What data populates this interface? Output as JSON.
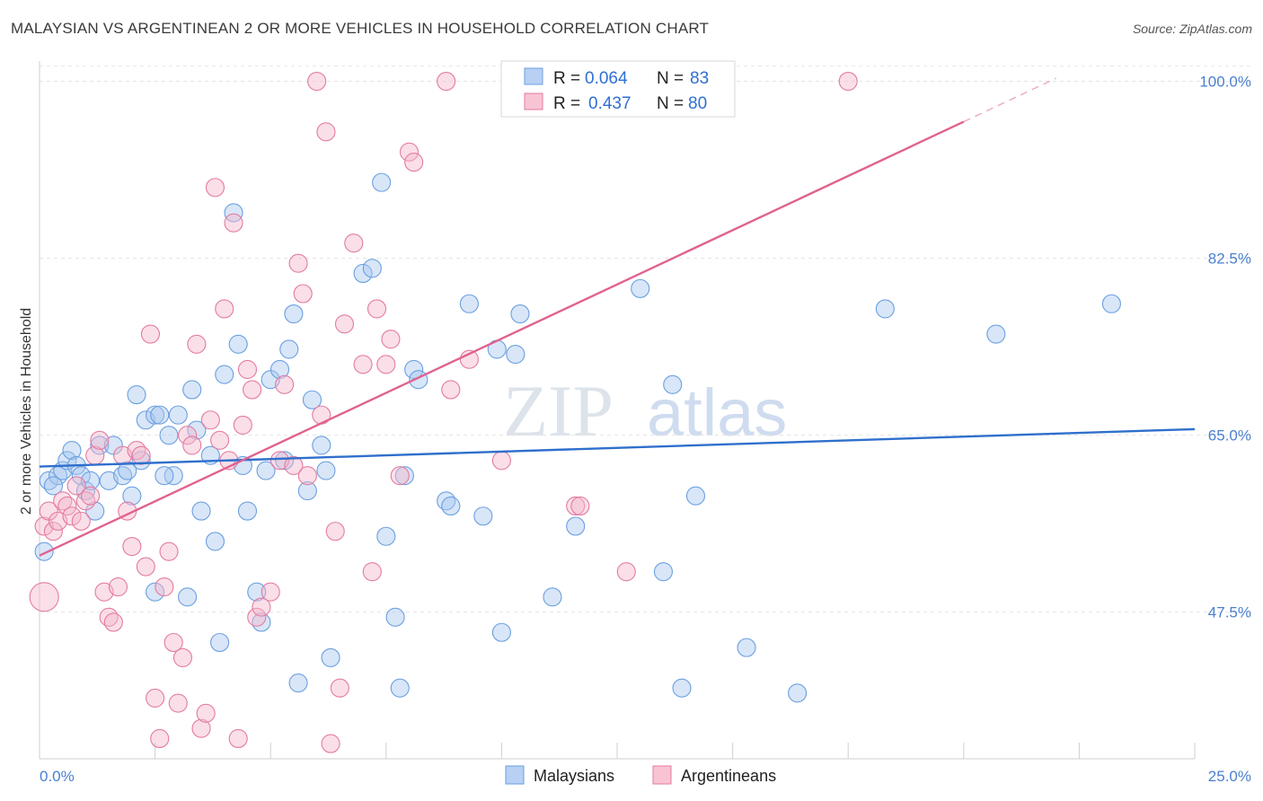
{
  "title": "MALAYSIAN VS ARGENTINEAN 2 OR MORE VEHICLES IN HOUSEHOLD CORRELATION CHART",
  "source": "Source: ZipAtlas.com",
  "watermark": {
    "zip": "ZIP",
    "atlas": "atlas"
  },
  "colors": {
    "blue": "#6a9fe0",
    "blue_fill": "#a9c8f0",
    "pink": "#e37aa0",
    "pink_fill": "#f5b8cb",
    "blue_line": "#2f6fcc",
    "pink_line": "#e0628f"
  },
  "legend": {
    "r_label": "R =",
    "n_label": "N =",
    "items": [
      {
        "r": "0.064",
        "n": "83"
      },
      {
        "r": "0.437",
        "n": "80"
      }
    ]
  },
  "chart_data": {
    "type": "scatter",
    "xlabel": "",
    "ylabel": "2 or more Vehicles in Household",
    "x_tick_labels": [
      "0.0%",
      "25.0%"
    ],
    "y_tick_labels": [
      "100.0%",
      "82.5%",
      "65.0%",
      "47.5%"
    ],
    "y_ticks": [
      100,
      82.5,
      65,
      47.5
    ],
    "xlim": [
      0,
      25
    ],
    "ylim": [
      33,
      102
    ],
    "grid": true,
    "legend_position": "top-center",
    "series": [
      {
        "name": "Malaysians",
        "color": "blue",
        "trend": {
          "x": [
            0,
            25
          ],
          "y": [
            61.9,
            65.6
          ]
        },
        "points": [
          [
            0.2,
            60.5
          ],
          [
            0.4,
            61.0
          ],
          [
            0.5,
            61.5
          ],
          [
            0.6,
            62.5
          ],
          [
            0.7,
            63.5
          ],
          [
            0.8,
            62.0
          ],
          [
            0.9,
            61.0
          ],
          [
            1.0,
            59.5
          ],
          [
            1.2,
            57.5
          ],
          [
            1.3,
            64.0
          ],
          [
            1.5,
            60.5
          ],
          [
            1.6,
            64.0
          ],
          [
            1.8,
            61.0
          ],
          [
            1.9,
            61.5
          ],
          [
            2.0,
            59.0
          ],
          [
            2.1,
            69.0
          ],
          [
            2.2,
            62.5
          ],
          [
            2.3,
            66.5
          ],
          [
            2.5,
            67.0
          ],
          [
            2.5,
            49.5
          ],
          [
            2.6,
            67.0
          ],
          [
            2.8,
            65.0
          ],
          [
            2.9,
            61.0
          ],
          [
            3.0,
            67.0
          ],
          [
            3.2,
            49.0
          ],
          [
            3.3,
            69.5
          ],
          [
            3.4,
            65.5
          ],
          [
            3.5,
            57.5
          ],
          [
            3.7,
            63.0
          ],
          [
            3.8,
            54.5
          ],
          [
            3.9,
            44.5
          ],
          [
            4.0,
            71.0
          ],
          [
            4.2,
            87.0
          ],
          [
            4.3,
            74.0
          ],
          [
            4.4,
            62.0
          ],
          [
            4.5,
            57.5
          ],
          [
            4.7,
            49.5
          ],
          [
            4.8,
            46.5
          ],
          [
            4.9,
            61.5
          ],
          [
            5.0,
            70.5
          ],
          [
            5.2,
            71.5
          ],
          [
            5.3,
            62.5
          ],
          [
            5.4,
            73.5
          ],
          [
            5.5,
            77.0
          ],
          [
            5.6,
            40.5
          ],
          [
            5.8,
            59.5
          ],
          [
            5.9,
            68.5
          ],
          [
            6.1,
            64.0
          ],
          [
            6.2,
            61.5
          ],
          [
            6.3,
            43.0
          ],
          [
            7.0,
            81.0
          ],
          [
            7.2,
            81.5
          ],
          [
            7.4,
            90.0
          ],
          [
            7.5,
            55.0
          ],
          [
            7.7,
            47.0
          ],
          [
            7.8,
            40.0
          ],
          [
            7.9,
            61.0
          ],
          [
            8.1,
            71.5
          ],
          [
            8.2,
            70.5
          ],
          [
            8.8,
            58.5
          ],
          [
            8.9,
            58.0
          ],
          [
            9.3,
            78.0
          ],
          [
            9.6,
            57.0
          ],
          [
            9.9,
            73.5
          ],
          [
            10.0,
            45.5
          ],
          [
            10.3,
            73.0
          ],
          [
            10.4,
            77.0
          ],
          [
            11.1,
            49.0
          ],
          [
            11.6,
            56.0
          ],
          [
            13.0,
            79.5
          ],
          [
            13.5,
            51.5
          ],
          [
            13.7,
            70.0
          ],
          [
            13.9,
            40.0
          ],
          [
            14.2,
            59.0
          ],
          [
            15.3,
            44.0
          ],
          [
            16.4,
            39.5
          ],
          [
            18.3,
            77.5
          ],
          [
            20.7,
            75.0
          ],
          [
            23.2,
            78.0
          ],
          [
            0.1,
            53.5
          ],
          [
            0.3,
            60.0
          ],
          [
            1.1,
            60.5
          ],
          [
            2.7,
            61.0
          ]
        ]
      },
      {
        "name": "Argentineans",
        "color": "pink",
        "trend": {
          "x": [
            0,
            20.0
          ],
          "y": [
            53.1,
            96.0
          ]
        },
        "trend_ext": {
          "x": [
            20.0,
            22.0
          ],
          "y": [
            96.0,
            100.3
          ]
        },
        "points": [
          [
            0.1,
            56.0
          ],
          [
            0.2,
            57.5
          ],
          [
            0.3,
            55.5
          ],
          [
            0.4,
            56.5
          ],
          [
            0.5,
            58.5
          ],
          [
            0.6,
            58.0
          ],
          [
            0.7,
            57.0
          ],
          [
            0.8,
            60.0
          ],
          [
            0.9,
            56.5
          ],
          [
            1.0,
            58.5
          ],
          [
            1.1,
            59.0
          ],
          [
            1.2,
            63.0
          ],
          [
            1.3,
            64.5
          ],
          [
            1.4,
            49.5
          ],
          [
            1.5,
            47.0
          ],
          [
            1.6,
            46.5
          ],
          [
            1.7,
            50.0
          ],
          [
            1.8,
            63.0
          ],
          [
            1.9,
            57.5
          ],
          [
            2.0,
            54.0
          ],
          [
            2.1,
            63.5
          ],
          [
            2.2,
            63.0
          ],
          [
            2.3,
            52.0
          ],
          [
            2.4,
            75.0
          ],
          [
            2.5,
            39.0
          ],
          [
            2.6,
            35.0
          ],
          [
            2.7,
            50.0
          ],
          [
            2.8,
            53.5
          ],
          [
            2.9,
            44.5
          ],
          [
            3.0,
            38.5
          ],
          [
            3.1,
            43.0
          ],
          [
            3.2,
            65.0
          ],
          [
            3.3,
            64.0
          ],
          [
            3.4,
            74.0
          ],
          [
            3.5,
            36.0
          ],
          [
            3.6,
            37.5
          ],
          [
            3.7,
            66.5
          ],
          [
            3.8,
            89.5
          ],
          [
            3.9,
            64.5
          ],
          [
            4.0,
            77.5
          ],
          [
            4.1,
            62.5
          ],
          [
            4.2,
            86.0
          ],
          [
            4.3,
            35.0
          ],
          [
            4.4,
            66.0
          ],
          [
            4.5,
            71.5
          ],
          [
            4.6,
            69.5
          ],
          [
            4.7,
            47.0
          ],
          [
            4.8,
            48.0
          ],
          [
            5.0,
            49.5
          ],
          [
            5.2,
            62.5
          ],
          [
            5.3,
            70.0
          ],
          [
            5.5,
            62.0
          ],
          [
            5.6,
            82.0
          ],
          [
            5.7,
            79.0
          ],
          [
            5.8,
            61.0
          ],
          [
            6.0,
            100.0
          ],
          [
            6.1,
            67.0
          ],
          [
            6.2,
            95.0
          ],
          [
            6.3,
            34.5
          ],
          [
            6.4,
            55.5
          ],
          [
            6.5,
            40.0
          ],
          [
            6.6,
            76.0
          ],
          [
            6.8,
            84.0
          ],
          [
            7.0,
            72.0
          ],
          [
            7.2,
            51.5
          ],
          [
            7.3,
            77.5
          ],
          [
            7.5,
            72.0
          ],
          [
            7.6,
            74.5
          ],
          [
            7.8,
            61.0
          ],
          [
            8.0,
            93.0
          ],
          [
            8.1,
            92.0
          ],
          [
            8.8,
            100.0
          ],
          [
            8.9,
            69.5
          ],
          [
            9.3,
            72.5
          ],
          [
            10.0,
            62.5
          ],
          [
            11.6,
            58.0
          ],
          [
            11.7,
            58.0
          ],
          [
            12.7,
            51.5
          ],
          [
            17.5,
            100.0
          ],
          [
            0.1,
            49.0
          ]
        ]
      }
    ]
  },
  "bottom_legend": [
    "Malaysians",
    "Argentineans"
  ]
}
